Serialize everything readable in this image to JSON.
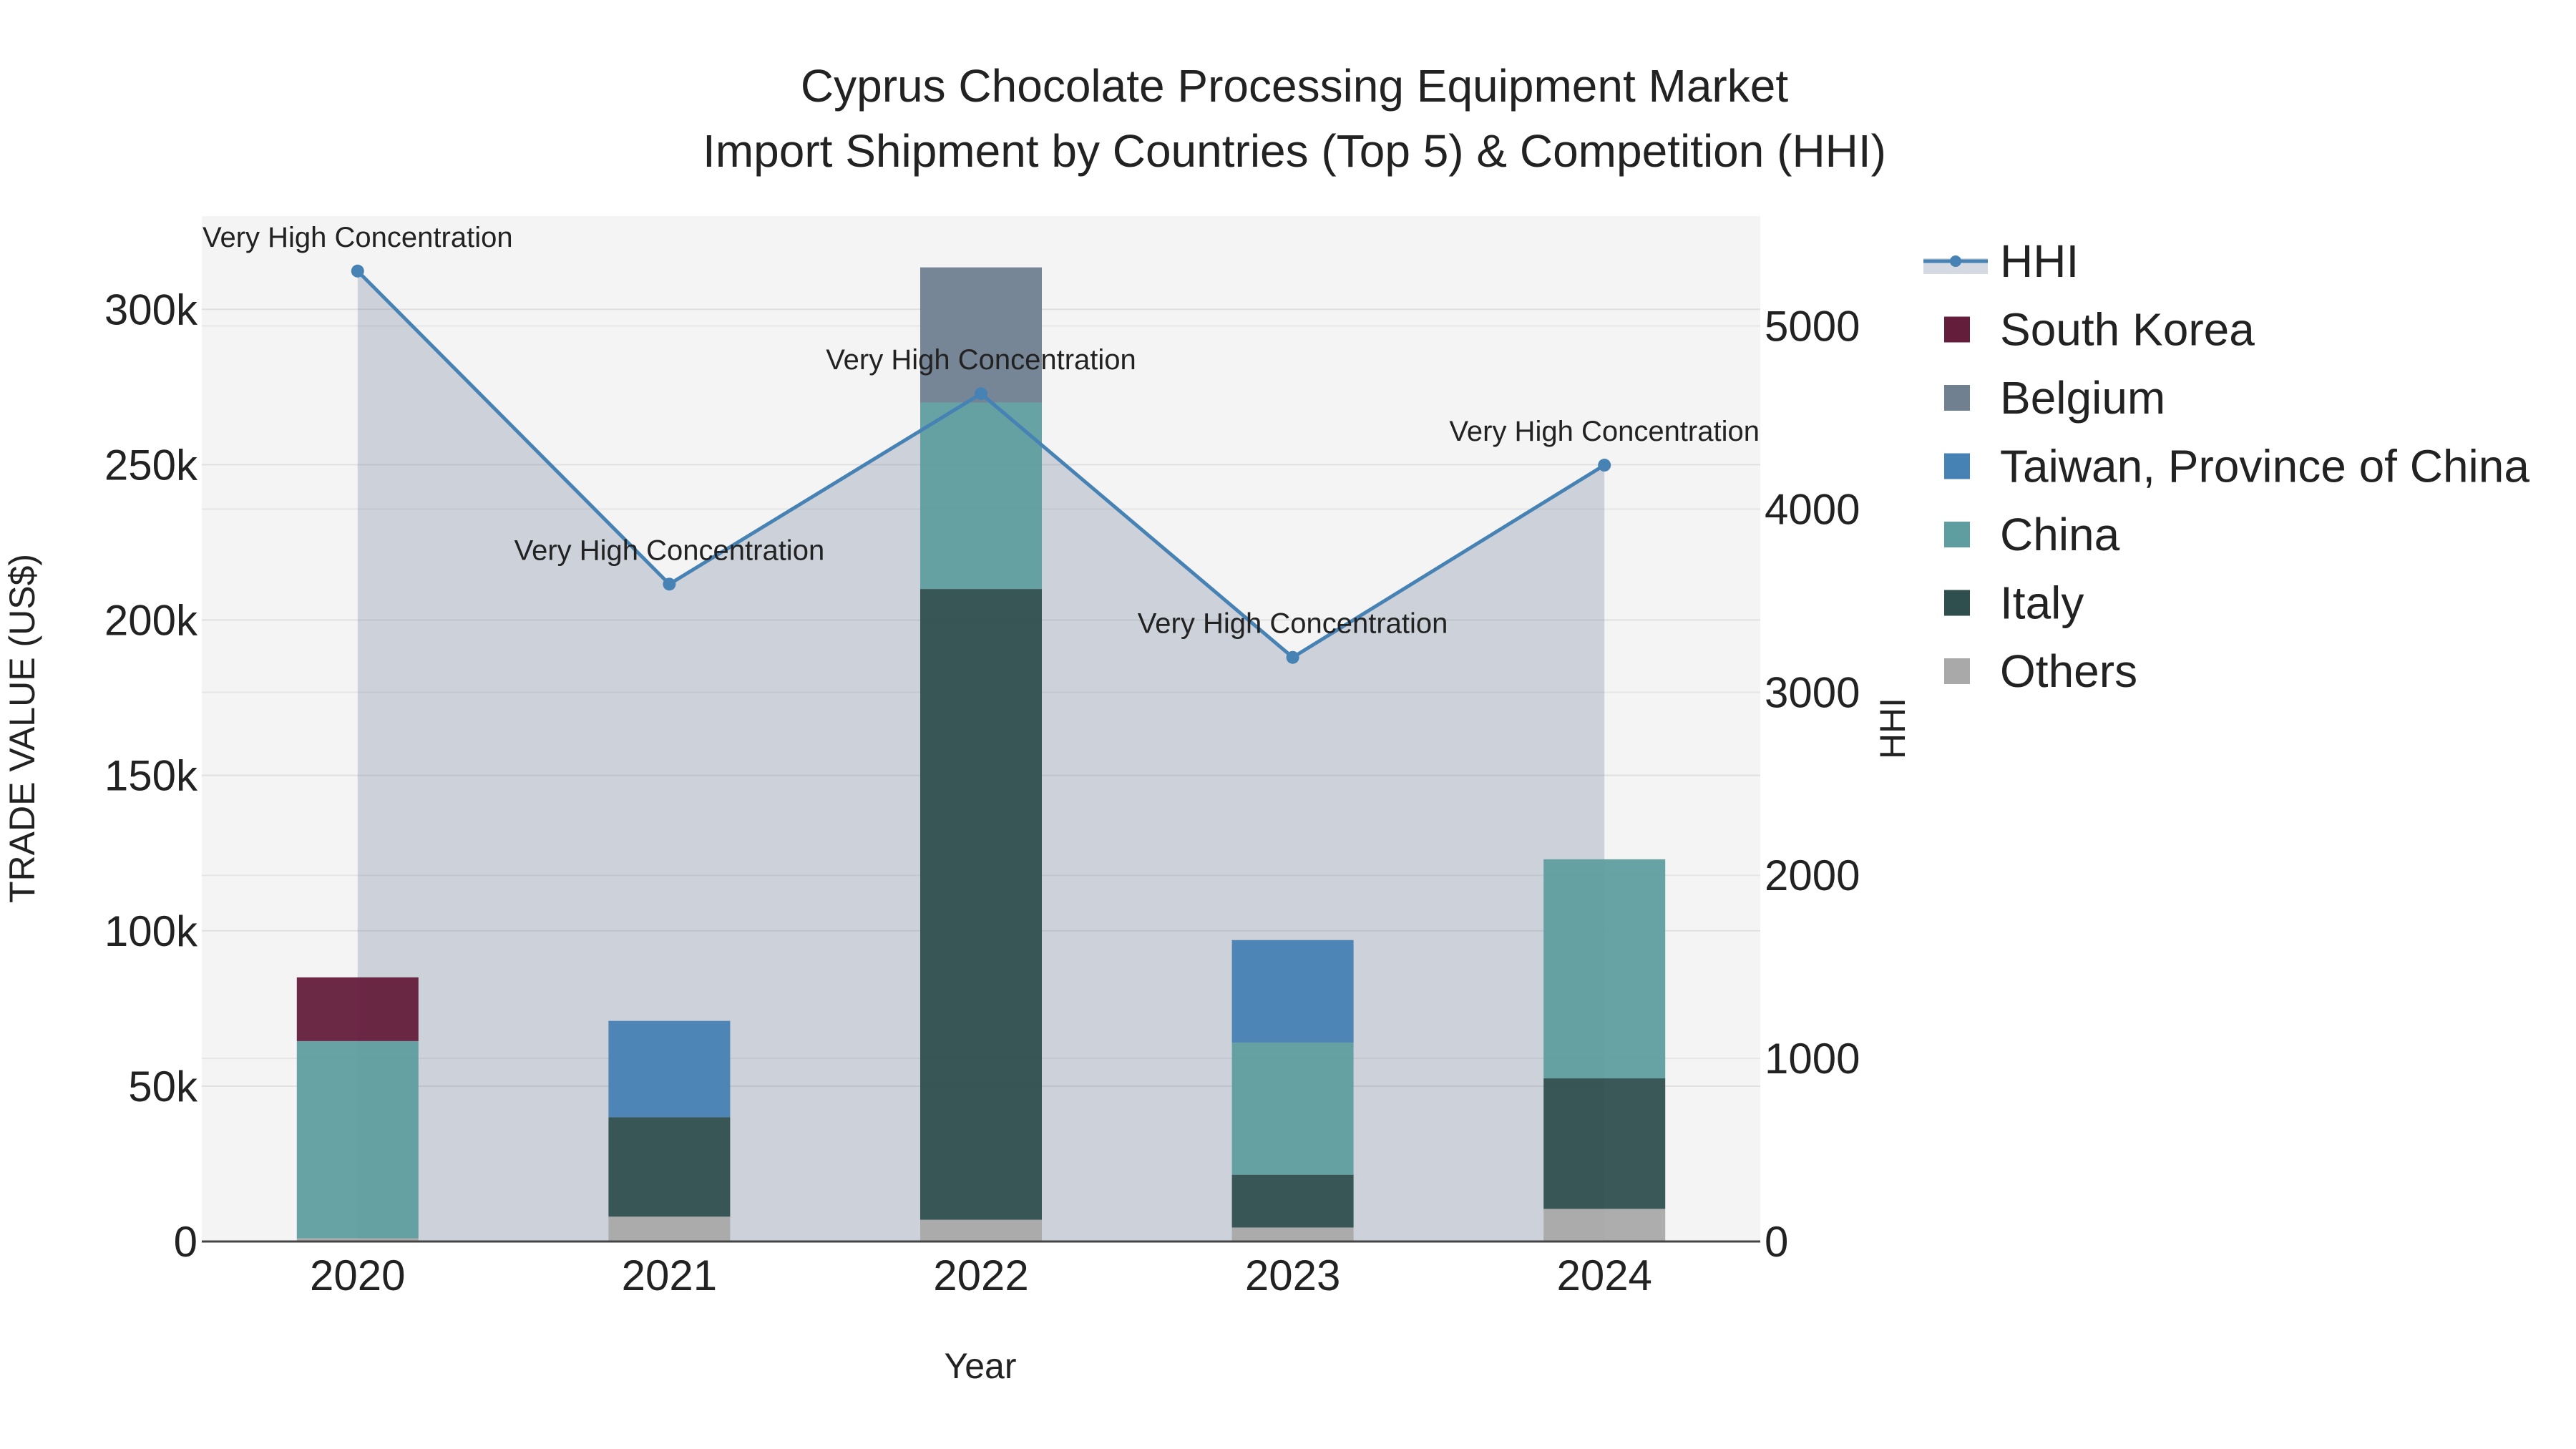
{
  "chart_data": {
    "type": "bar",
    "title_line1": "Cyprus Chocolate Processing Equipment Market",
    "title_line2": "Import Shipment by Countries (Top 5) & Competition (HHI)",
    "xlabel": "Year",
    "ylabel_left": "TRADE VALUE (US$)",
    "ylabel_right": "HHI",
    "categories": [
      "2020",
      "2021",
      "2022",
      "2023",
      "2024"
    ],
    "ylim_left": [
      0,
      330000
    ],
    "ylim_right": [
      0,
      5600
    ],
    "left_ticks": [
      {
        "value": 0,
        "label": "0"
      },
      {
        "value": 50000,
        "label": "50k"
      },
      {
        "value": 100000,
        "label": "100k"
      },
      {
        "value": 150000,
        "label": "150k"
      },
      {
        "value": 200000,
        "label": "200k"
      },
      {
        "value": 250000,
        "label": "250k"
      },
      {
        "value": 300000,
        "label": "300k"
      }
    ],
    "right_ticks": [
      {
        "value": 0,
        "label": "0"
      },
      {
        "value": 1000,
        "label": "1000"
      },
      {
        "value": 2000,
        "label": "2000"
      },
      {
        "value": 3000,
        "label": "3000"
      },
      {
        "value": 4000,
        "label": "4000"
      },
      {
        "value": 5000,
        "label": "5000"
      }
    ],
    "series": [
      {
        "name": "Others",
        "color": "#a9a9a9",
        "values": [
          1000,
          8000,
          7000,
          4500,
          10500
        ]
      },
      {
        "name": "Italy",
        "color": "#2f4f4f",
        "values": [
          0,
          32000,
          203000,
          17000,
          42000
        ]
      },
      {
        "name": "China",
        "color": "#5f9ea0",
        "values": [
          63500,
          0,
          60000,
          42500,
          70500
        ]
      },
      {
        "name": "Taiwan, Province of China",
        "color": "#4682b4",
        "values": [
          0,
          31000,
          0,
          33000,
          0
        ]
      },
      {
        "name": "Belgium",
        "color": "#708090",
        "values": [
          0,
          0,
          43500,
          0,
          0
        ]
      },
      {
        "name": "South Korea",
        "color": "#641e3c",
        "values": [
          20500,
          0,
          0,
          0,
          0
        ]
      }
    ],
    "hhi": {
      "name": "HHI",
      "color": "#4682b4",
      "values": [
        5300,
        3590,
        4630,
        3190,
        4240
      ],
      "labels": [
        "Very High Concentration",
        "Very High Concentration",
        "Very High Concentration",
        "Very High Concentration",
        "Very High Concentration"
      ]
    },
    "legend": [
      "HHI",
      "South Korea",
      "Belgium",
      "Taiwan, Province of China",
      "China",
      "Italy",
      "Others"
    ],
    "legend_position": "right"
  }
}
